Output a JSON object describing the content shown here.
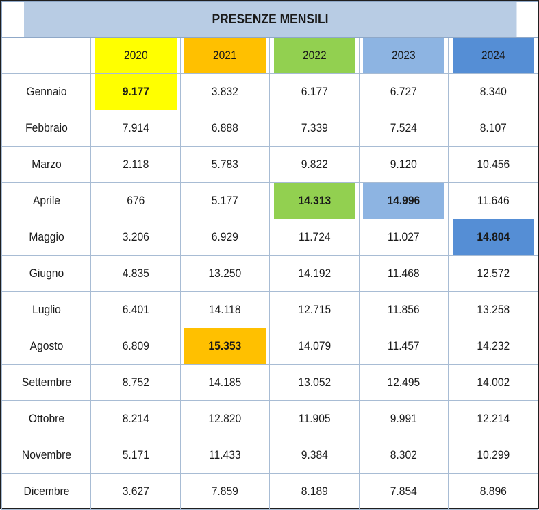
{
  "table": {
    "title": "PRESENZE MENSILI",
    "years": [
      "2020",
      "2021",
      "2022",
      "2023",
      "2024"
    ],
    "year_colors": [
      "#ffff00",
      "#ffc000",
      "#92d050",
      "#8db4e2",
      "#558ed5"
    ],
    "months": [
      "Gennaio",
      "Febbraio",
      "Marzo",
      "Aprile",
      "Maggio",
      "Giugno",
      "Luglio",
      "Agosto",
      "Settembre",
      "Ottobre",
      "Novembre",
      "Dicembre"
    ],
    "rows": [
      [
        "9.177",
        "3.832",
        "6.177",
        "6.727",
        "8.340"
      ],
      [
        "7.914",
        "6.888",
        "7.339",
        "7.524",
        "8.107"
      ],
      [
        "2.118",
        "5.783",
        "9.822",
        "9.120",
        "10.456"
      ],
      [
        "676",
        "5.177",
        "14.313",
        "14.996",
        "11.646"
      ],
      [
        "3.206",
        "6.929",
        "11.724",
        "11.027",
        "14.804"
      ],
      [
        "4.835",
        "13.250",
        "14.192",
        "11.468",
        "12.572"
      ],
      [
        "6.401",
        "14.118",
        "12.715",
        "11.856",
        "13.258"
      ],
      [
        "6.809",
        "15.353",
        "14.079",
        "11.457",
        "14.232"
      ],
      [
        "8.752",
        "14.185",
        "13.052",
        "12.495",
        "14.002"
      ],
      [
        "8.214",
        "12.820",
        "11.905",
        "9.991",
        "12.214"
      ],
      [
        "5.171",
        "11.433",
        "9.384",
        "8.302",
        "10.299"
      ],
      [
        "3.627",
        "7.859",
        "8.189",
        "7.854",
        "8.896"
      ]
    ],
    "highlighted_maxima": [
      {
        "month": "Gennaio",
        "year": "2020"
      },
      {
        "month": "Agosto",
        "year": "2021"
      },
      {
        "month": "Aprile",
        "year": "2022"
      },
      {
        "month": "Aprile",
        "year": "2023"
      },
      {
        "month": "Maggio",
        "year": "2024"
      }
    ]
  },
  "chart_data": {
    "type": "table",
    "title": "PRESENZE MENSILI",
    "columns": [
      "2020",
      "2021",
      "2022",
      "2023",
      "2024"
    ],
    "row_labels": [
      "Gennaio",
      "Febbraio",
      "Marzo",
      "Aprile",
      "Maggio",
      "Giugno",
      "Luglio",
      "Agosto",
      "Settembre",
      "Ottobre",
      "Novembre",
      "Dicembre"
    ],
    "series": [
      {
        "name": "2020",
        "values": [
          9177,
          7914,
          2118,
          676,
          3206,
          4835,
          6401,
          6809,
          8752,
          8214,
          5171,
          3627
        ]
      },
      {
        "name": "2021",
        "values": [
          3832,
          6888,
          5783,
          5177,
          6929,
          13250,
          14118,
          15353,
          14185,
          12820,
          11433,
          7859
        ]
      },
      {
        "name": "2022",
        "values": [
          6177,
          7339,
          9822,
          14313,
          11724,
          14192,
          12715,
          14079,
          13052,
          11905,
          9384,
          8189
        ]
      },
      {
        "name": "2023",
        "values": [
          6727,
          7524,
          9120,
          14996,
          11027,
          11468,
          11856,
          11457,
          12495,
          9991,
          8302,
          7854
        ]
      },
      {
        "name": "2024",
        "values": [
          8340,
          8107,
          10456,
          11646,
          14804,
          12572,
          13258,
          14232,
          14002,
          12214,
          10299,
          8896
        ]
      }
    ]
  }
}
